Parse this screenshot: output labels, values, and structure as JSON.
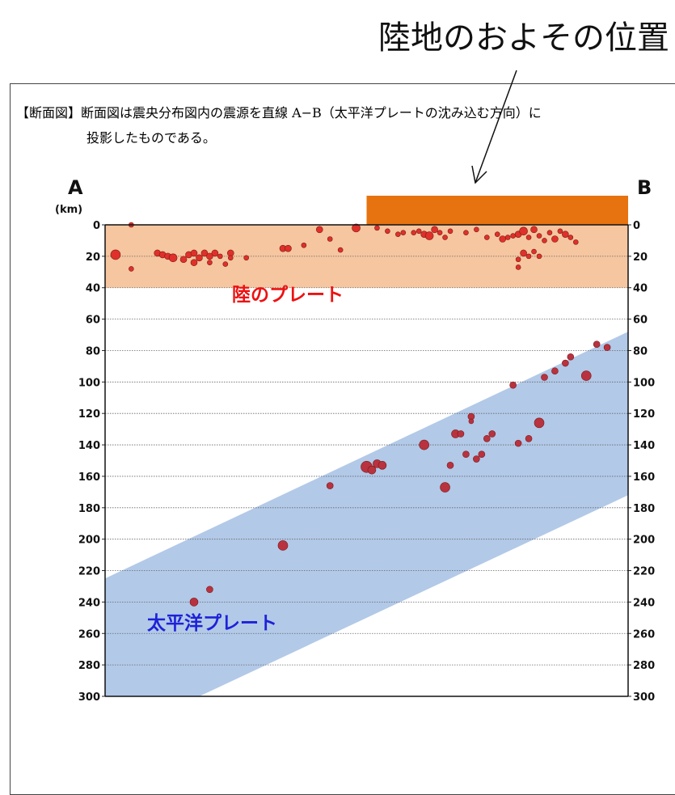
{
  "callout": {
    "text": "陸地のおよその位置"
  },
  "caption": {
    "line1": "【断面図】断面図は震央分布図内の震源を直線 A−B（太平洋プレートの沈み込む方向）に",
    "line2": "投影したものである。"
  },
  "chart_data": {
    "type": "scatter",
    "title": "",
    "endpoint_left": "A",
    "endpoint_right": "B",
    "unit_label": "(km)",
    "xlabel": "",
    "ylabel": "",
    "xlim": [
      0,
      100
    ],
    "ylim": [
      300,
      0
    ],
    "y_ticks": [
      0,
      20,
      40,
      60,
      80,
      100,
      120,
      140,
      160,
      180,
      200,
      220,
      240,
      260,
      280,
      300
    ],
    "grid": "dashed-horizontal",
    "regions": [
      {
        "label": "陸のプレート",
        "depth_top": 0,
        "depth_bottom": 40,
        "color": "#f5c6a0",
        "label_color": "#ee1111"
      },
      {
        "label": "太平洋プレート",
        "band_top_left": 225,
        "band_top_right": 68,
        "band_bottom_left": 300,
        "band_bottom_right": 172,
        "band_bottom_left_x": 18,
        "color": "#b2c9e8",
        "label_color": "#1d22d8"
      }
    ],
    "land_bar": {
      "x_start": 50,
      "x_end": 100,
      "color": "#e6730f"
    },
    "series": [
      {
        "color": "#e0302a",
        "points": [
          [
            2,
            19,
            6
          ],
          [
            5,
            28,
            3
          ],
          [
            5,
            0,
            3
          ],
          [
            10,
            18,
            4
          ],
          [
            11,
            19,
            4
          ],
          [
            12,
            20,
            4
          ],
          [
            13,
            21,
            5
          ],
          [
            15,
            22,
            4
          ],
          [
            16,
            19,
            4
          ],
          [
            17,
            18,
            4
          ],
          [
            17,
            24,
            4
          ],
          [
            18,
            21,
            4
          ],
          [
            19,
            18,
            4
          ],
          [
            20,
            20,
            4
          ],
          [
            20,
            24,
            3
          ],
          [
            21,
            18,
            4
          ],
          [
            22,
            20,
            3
          ],
          [
            23,
            25,
            3
          ],
          [
            24,
            18,
            4
          ],
          [
            24,
            21,
            3
          ],
          [
            27,
            21,
            3
          ],
          [
            34,
            15,
            4
          ],
          [
            35,
            15,
            4
          ],
          [
            38,
            13,
            3
          ],
          [
            41,
            3,
            4
          ],
          [
            43,
            9,
            3
          ],
          [
            45,
            16,
            3
          ],
          [
            48,
            2,
            5
          ],
          [
            52,
            2,
            3
          ],
          [
            54,
            4,
            3
          ],
          [
            56,
            6,
            3
          ],
          [
            57,
            5,
            3
          ],
          [
            59,
            5,
            3
          ],
          [
            60,
            4,
            3
          ],
          [
            61,
            6,
            4
          ],
          [
            62,
            7,
            5
          ],
          [
            63,
            3,
            4
          ],
          [
            64,
            5,
            3
          ],
          [
            65,
            8,
            3
          ],
          [
            66,
            4,
            3
          ],
          [
            69,
            5,
            3
          ],
          [
            71,
            3,
            3
          ],
          [
            73,
            8,
            3
          ],
          [
            75,
            6,
            3
          ],
          [
            76,
            9,
            4
          ],
          [
            77,
            8,
            3
          ],
          [
            78,
            7,
            3
          ],
          [
            79,
            6,
            4
          ],
          [
            80,
            4,
            5
          ],
          [
            81,
            8,
            3
          ],
          [
            82,
            3,
            4
          ],
          [
            83,
            7,
            3
          ],
          [
            84,
            10,
            3
          ],
          [
            85,
            5,
            3
          ],
          [
            86,
            9,
            4
          ],
          [
            87,
            4,
            3
          ],
          [
            88,
            6,
            4
          ],
          [
            89,
            8,
            3
          ],
          [
            90,
            11,
            3
          ],
          [
            80,
            18,
            4
          ],
          [
            81,
            20,
            3
          ],
          [
            79,
            22,
            3
          ],
          [
            79,
            27,
            3
          ],
          [
            82,
            17,
            3
          ],
          [
            83,
            20,
            3
          ]
        ]
      },
      {
        "color": "#b93240",
        "points": [
          [
            17,
            240,
            5
          ],
          [
            20,
            232,
            4
          ],
          [
            34,
            204,
            6
          ],
          [
            43,
            166,
            4
          ],
          [
            50,
            154,
            7
          ],
          [
            51,
            156,
            5
          ],
          [
            52,
            152,
            5
          ],
          [
            53,
            153,
            5
          ],
          [
            61,
            140,
            6
          ],
          [
            65,
            167,
            6
          ],
          [
            66,
            153,
            4
          ],
          [
            67,
            133,
            5
          ],
          [
            68,
            133,
            4
          ],
          [
            69,
            146,
            4
          ],
          [
            70,
            122,
            4
          ],
          [
            70,
            125,
            3
          ],
          [
            71,
            149,
            4
          ],
          [
            72,
            146,
            4
          ],
          [
            73,
            136,
            4
          ],
          [
            74,
            133,
            4
          ],
          [
            78,
            102,
            4
          ],
          [
            79,
            139,
            4
          ],
          [
            81,
            136,
            4
          ],
          [
            83,
            126,
            6
          ],
          [
            84,
            97,
            4
          ],
          [
            86,
            93,
            4
          ],
          [
            88,
            88,
            4
          ],
          [
            89,
            84,
            4
          ],
          [
            92,
            96,
            6
          ],
          [
            94,
            76,
            4
          ],
          [
            96,
            78,
            4
          ]
        ]
      }
    ]
  }
}
